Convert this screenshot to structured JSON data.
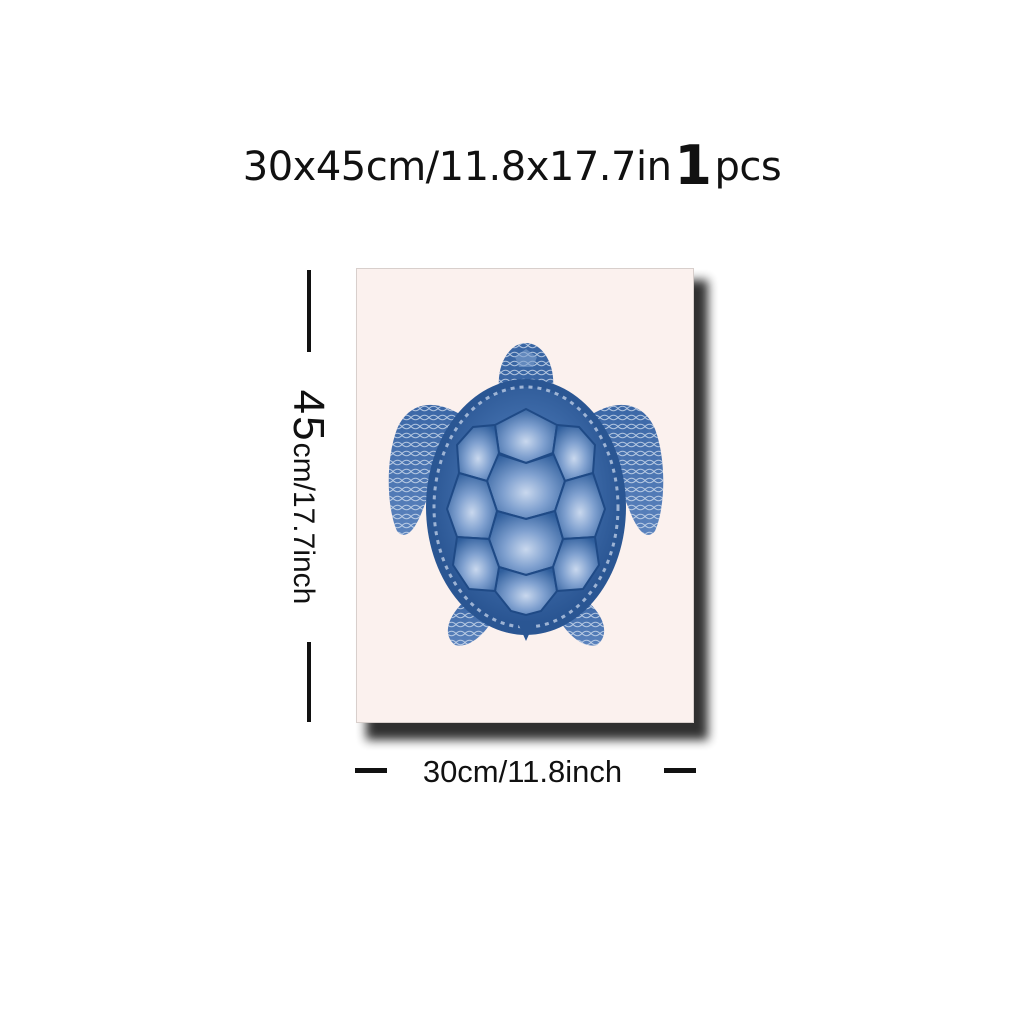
{
  "product": {
    "size_label": "30x45cm/11.8x17.7in",
    "quantity": "1",
    "quantity_unit": "pcs"
  },
  "dimensions": {
    "height_value": "45",
    "height_text": "cm/17.7inch",
    "width_text": "30cm/11.8inch"
  },
  "artwork": {
    "subject_icon": "sea-turtle-icon",
    "ink_color": "#2d5a96",
    "paper_color": "#fbf1ee"
  }
}
